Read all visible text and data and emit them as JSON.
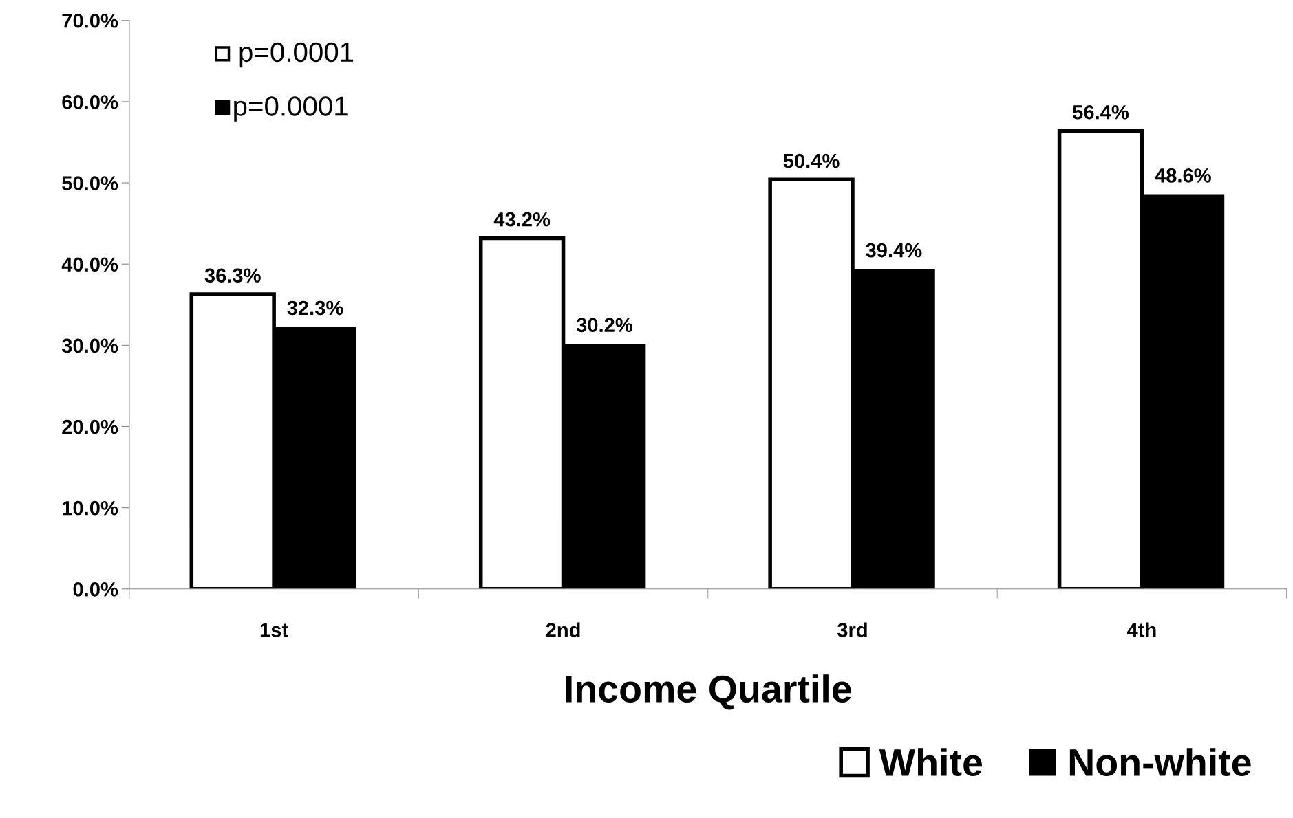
{
  "chart_data": {
    "type": "bar",
    "xlabel": "Income Quartile",
    "categories": [
      "1st",
      "2nd",
      "3rd",
      "4th"
    ],
    "series": [
      {
        "name": "White",
        "color": "#ffffff",
        "values": [
          36.3,
          43.2,
          50.4,
          56.4
        ],
        "value_labels": [
          "36.3%",
          "43.2%",
          "50.4%",
          "56.4%"
        ]
      },
      {
        "name": "Non-white",
        "color": "#000000",
        "values": [
          32.3,
          30.2,
          39.4,
          48.6
        ],
        "value_labels": [
          "32.3%",
          "30.2%",
          "39.4%",
          "48.6%"
        ]
      }
    ],
    "ylim": [
      0,
      70
    ],
    "yticks": [
      {
        "value": 0,
        "label": "0.0%"
      },
      {
        "value": 10,
        "label": "10.0%"
      },
      {
        "value": 20,
        "label": "20.0%"
      },
      {
        "value": 30,
        "label": "30.0%"
      },
      {
        "value": 40,
        "label": "40.0%"
      },
      {
        "value": 50,
        "label": "50.0%"
      },
      {
        "value": 60,
        "label": "60.0%"
      },
      {
        "value": 70,
        "label": "70.0%"
      }
    ],
    "annotations": [
      "p=0.0001",
      "p=0.0001"
    ],
    "grid": false,
    "legend": "bottom right"
  }
}
